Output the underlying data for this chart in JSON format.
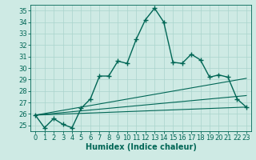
{
  "xlabel": "Humidex (Indice chaleur)",
  "bg_color": "#ceeae4",
  "line_color": "#006655",
  "grid_color": "#aad4cc",
  "xlim": [
    -0.5,
    23.5
  ],
  "ylim": [
    24.5,
    35.5
  ],
  "yticks": [
    25,
    26,
    27,
    28,
    29,
    30,
    31,
    32,
    33,
    34,
    35
  ],
  "xticks": [
    0,
    1,
    2,
    3,
    4,
    5,
    6,
    7,
    8,
    9,
    10,
    11,
    12,
    13,
    14,
    15,
    16,
    17,
    18,
    19,
    20,
    21,
    22,
    23
  ],
  "line1_x": [
    0,
    1,
    2,
    3,
    4,
    5,
    6,
    7,
    8,
    9,
    10,
    11,
    12,
    13,
    14,
    15,
    16,
    17,
    18,
    19,
    20,
    21,
    22,
    23
  ],
  "line1_y": [
    25.9,
    24.8,
    25.6,
    25.1,
    24.8,
    26.5,
    27.3,
    29.3,
    29.3,
    30.6,
    30.4,
    32.5,
    34.2,
    35.2,
    34.0,
    30.5,
    30.4,
    31.2,
    30.7,
    29.2,
    29.4,
    29.2,
    27.3,
    26.6
  ],
  "line2_x": [
    0,
    23
  ],
  "line2_y": [
    25.9,
    26.6
  ],
  "line3_x": [
    0,
    23
  ],
  "line3_y": [
    25.9,
    27.6
  ],
  "line4_x": [
    0,
    23
  ],
  "line4_y": [
    25.9,
    29.1
  ],
  "marker": "+",
  "markersize": 4.0,
  "linewidth": 1.0,
  "tick_fontsize": 6.0,
  "xlabel_fontsize": 7.0
}
